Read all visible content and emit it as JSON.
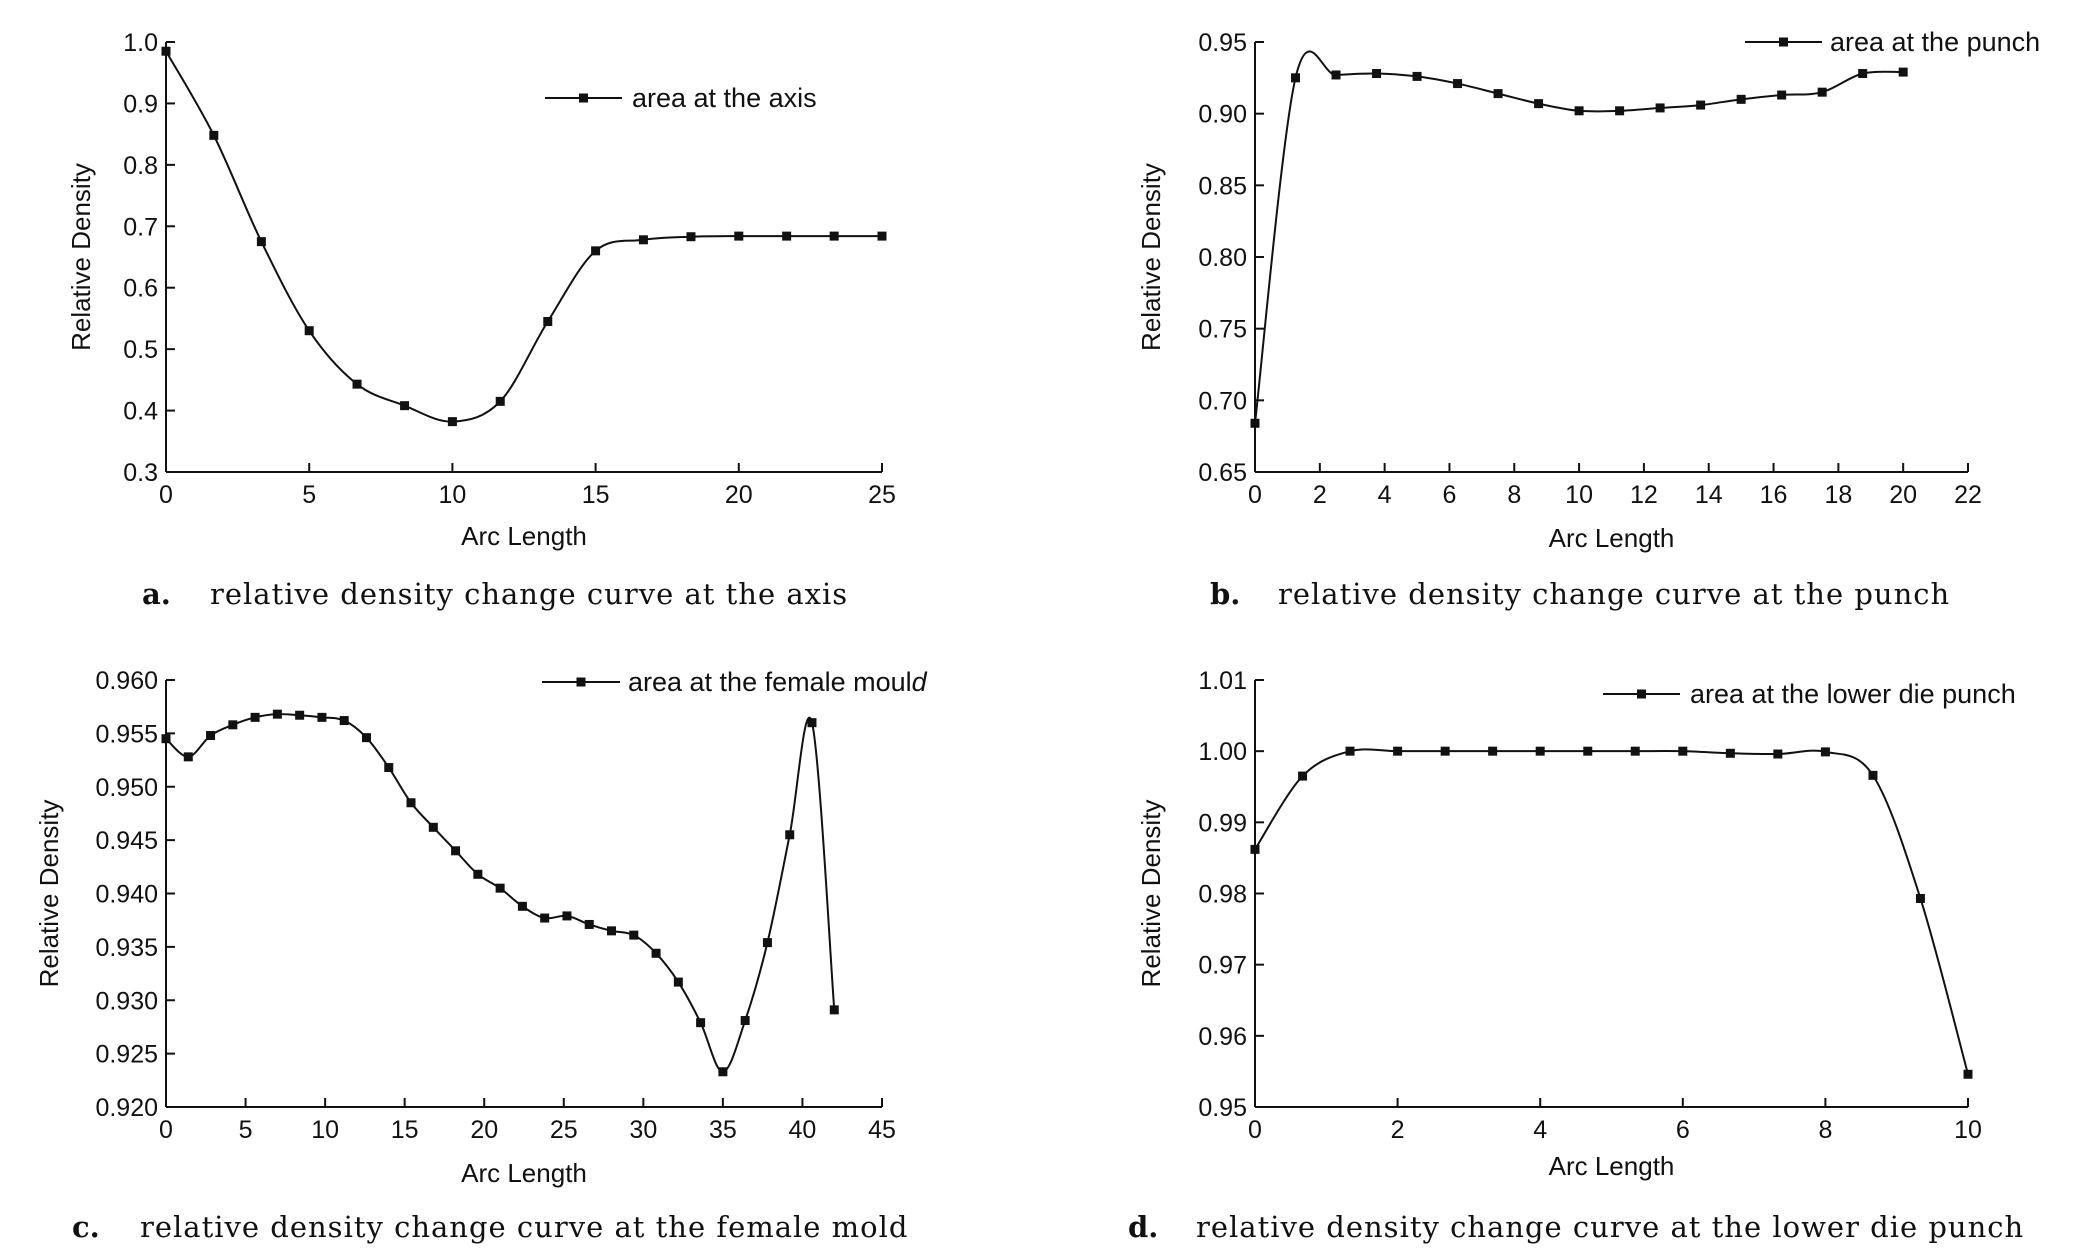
{
  "chart_data": [
    {
      "id": "a",
      "type": "line",
      "xlabel": "Arc Length",
      "ylabel": "Relative Density",
      "xlim": [
        0,
        25
      ],
      "ylim": [
        0.3,
        1.0
      ],
      "xticks": [
        0,
        5,
        10,
        15,
        20,
        25
      ],
      "xtick_labels": [
        "0",
        "5",
        "10",
        "15",
        "20",
        "25"
      ],
      "yticks": [
        0.3,
        0.4,
        0.5,
        0.6,
        0.7,
        0.8,
        0.9,
        1.0
      ],
      "ytick_labels": [
        "0.3",
        "0.4",
        "0.5",
        "0.6",
        "0.7",
        "0.8",
        "0.9",
        "1.0"
      ],
      "legend": "top-right",
      "grid": false,
      "series": [
        {
          "name": "area at the axis",
          "x": [
            0,
            1.67,
            3.33,
            5.0,
            6.67,
            8.33,
            10.0,
            11.67,
            13.33,
            15.0,
            16.67,
            18.33,
            20.0,
            21.67,
            23.33,
            25.0
          ],
          "y": [
            0.985,
            0.848,
            0.675,
            0.53,
            0.443,
            0.408,
            0.382,
            0.415,
            0.545,
            0.66,
            0.678,
            0.683,
            0.684,
            0.684,
            0.684,
            0.684
          ]
        }
      ],
      "caption_letter": "a.",
      "caption_text": "relative density change curve at the axis"
    },
    {
      "id": "b",
      "type": "line",
      "xlabel": "Arc Length",
      "ylabel": "Relative Density",
      "xlim": [
        0,
        22
      ],
      "ylim": [
        0.65,
        0.95
      ],
      "xticks": [
        0,
        2,
        4,
        6,
        8,
        10,
        12,
        14,
        16,
        18,
        20,
        22
      ],
      "xtick_labels": [
        "0",
        "2",
        "4",
        "6",
        "8",
        "10",
        "12",
        "14",
        "16",
        "18",
        "20",
        "22"
      ],
      "yticks": [
        0.65,
        0.7,
        0.75,
        0.8,
        0.85,
        0.9,
        0.95
      ],
      "ytick_labels": [
        "0.65",
        "0.70",
        "0.75",
        "0.80",
        "0.85",
        "0.90",
        "0.95"
      ],
      "legend": "top-right",
      "grid": false,
      "series": [
        {
          "name": "area at the punch",
          "x": [
            0,
            1.25,
            2.5,
            3.75,
            5.0,
            6.25,
            7.5,
            8.75,
            10.0,
            11.25,
            12.5,
            13.75,
            15.0,
            16.25,
            17.5,
            18.75,
            20.0
          ],
          "y": [
            0.684,
            0.925,
            0.927,
            0.928,
            0.926,
            0.921,
            0.914,
            0.907,
            0.902,
            0.902,
            0.904,
            0.906,
            0.91,
            0.913,
            0.915,
            0.928,
            0.929
          ]
        }
      ],
      "caption_letter": "b.",
      "caption_text": "relative density change curve at the punch"
    },
    {
      "id": "c",
      "type": "line",
      "xlabel": "Arc Length",
      "ylabel": "Relative Density",
      "xlim": [
        0,
        45
      ],
      "ylim": [
        0.92,
        0.96
      ],
      "xticks": [
        0,
        5,
        10,
        15,
        20,
        25,
        30,
        35,
        40,
        45
      ],
      "xtick_labels": [
        "0",
        "5",
        "10",
        "15",
        "20",
        "25",
        "30",
        "35",
        "40",
        "45"
      ],
      "yticks": [
        0.92,
        0.925,
        0.93,
        0.935,
        0.94,
        0.945,
        0.95,
        0.955,
        0.96
      ],
      "ytick_labels": [
        "0.920",
        "0.925",
        "0.930",
        "0.935",
        "0.940",
        "0.945",
        "0.950",
        "0.955",
        "0.960"
      ],
      "legend": "top-right",
      "grid": false,
      "series": [
        {
          "name_main": "area at the female moul",
          "name_tail": "d",
          "x": [
            0,
            1.4,
            2.8,
            4.2,
            5.6,
            7.0,
            8.4,
            9.8,
            11.2,
            12.6,
            14.0,
            15.4,
            16.8,
            18.2,
            19.6,
            21.0,
            22.4,
            23.8,
            25.2,
            26.6,
            28.0,
            29.4,
            30.8,
            32.2,
            33.6,
            35.0,
            36.4,
            37.8,
            39.2,
            40.6,
            42.0
          ],
          "y": [
            0.9545,
            0.9528,
            0.9548,
            0.9558,
            0.9565,
            0.9568,
            0.9567,
            0.9565,
            0.9562,
            0.9546,
            0.9518,
            0.9485,
            0.9462,
            0.944,
            0.9418,
            0.9405,
            0.9388,
            0.9377,
            0.9379,
            0.9371,
            0.9365,
            0.9361,
            0.9344,
            0.9317,
            0.9279,
            0.9233,
            0.9281,
            0.9354,
            0.9455,
            0.956,
            0.9291
          ]
        }
      ],
      "caption_letter": "c.",
      "caption_text": "relative density change curve at the female mold"
    },
    {
      "id": "d",
      "type": "line",
      "xlabel": "Arc Length",
      "ylabel": "Relative Density",
      "xlim": [
        0,
        10
      ],
      "ylim": [
        0.95,
        1.01
      ],
      "xticks": [
        0,
        2,
        4,
        6,
        8,
        10
      ],
      "xtick_labels": [
        "0",
        "2",
        "4",
        "6",
        "8",
        "10"
      ],
      "yticks": [
        0.95,
        0.96,
        0.97,
        0.98,
        0.99,
        1.0,
        1.01
      ],
      "ytick_labels": [
        "0.95",
        "0.96",
        "0.97",
        "0.98",
        "0.99",
        "1.00",
        "1.01"
      ],
      "legend": "top-right",
      "grid": false,
      "series": [
        {
          "name": "area at the lower die punch",
          "x": [
            0,
            0.667,
            1.333,
            2.0,
            2.667,
            3.333,
            4.0,
            4.667,
            5.333,
            6.0,
            6.667,
            7.333,
            8.0,
            8.667,
            9.333,
            10.0
          ],
          "y": [
            0.9862,
            0.9965,
            1.0,
            1.0,
            1.0,
            1.0,
            1.0,
            1.0,
            1.0,
            1.0,
            0.9997,
            0.9996,
            0.9999,
            0.9966,
            0.9793,
            0.9546
          ]
        }
      ],
      "caption_letter": "d.",
      "caption_text": "relative density change curve at the lower die punch"
    }
  ],
  "colors": {
    "line": "#111111",
    "text": "#111111",
    "background": "#ffffff"
  }
}
